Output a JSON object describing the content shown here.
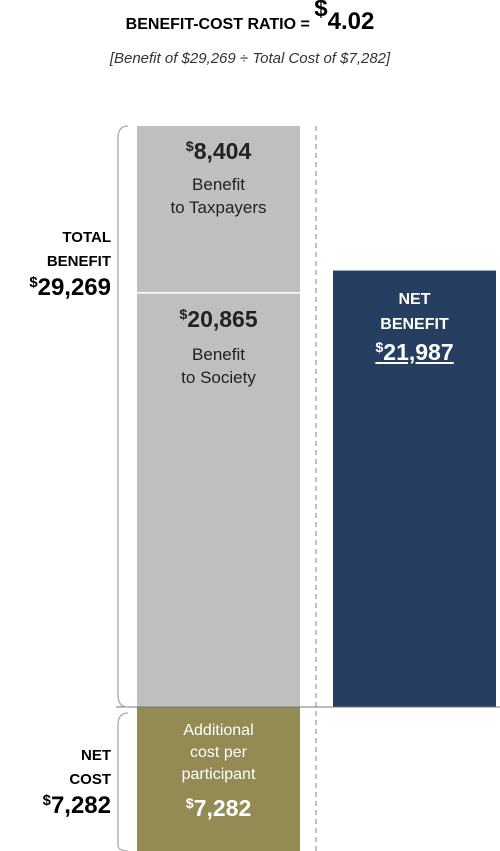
{
  "header": {
    "title_prefix": "BENEFIT-COST RATIO = ",
    "title_currency": "$",
    "title_value": "4.02",
    "subtitle": "[Benefit of $29,269 ÷ Total Cost of $7,282]"
  },
  "colors": {
    "benefit": "#bfbfbf",
    "net_benefit": "#263f61",
    "cost": "#948a54",
    "divider": "#999999",
    "brace": "#aaaaaa"
  },
  "side_labels": {
    "total": {
      "line1": "TOTAL",
      "line2": "BENEFIT",
      "currency": "$",
      "value": "29,269"
    },
    "cost": {
      "line1": "NET",
      "line2": "COST",
      "currency": "$",
      "value": "7,282"
    }
  },
  "chart_data": {
    "type": "bar",
    "title": "BENEFIT-COST RATIO = $4.02",
    "subtitle": "[Benefit of $29,269 ÷ Total Cost of $7,282]",
    "series": [
      {
        "name": "Benefit to Taxpayers",
        "value": 8404,
        "amount_label": "8,404",
        "label_line1": "Benefit",
        "label_line2": "to Taxpayers"
      },
      {
        "name": "Benefit to Society",
        "value": 20865,
        "amount_label": "20,865",
        "label_line1": "Benefit",
        "label_line2": "to Society"
      },
      {
        "name": "Additional cost per participant",
        "value": 7282,
        "amount_label": "7,282",
        "label_line1": "Additional",
        "label_line2": "cost per",
        "label_line3": "participant"
      },
      {
        "name": "NET BENEFIT",
        "value": 21987,
        "amount_label": "21,987",
        "label_line1": "NET",
        "label_line2": "BENEFIT"
      }
    ],
    "total_benefit": 29269,
    "net_cost": 7282,
    "net_benefit": 21987,
    "ratio": 4.02,
    "currency": "$"
  }
}
